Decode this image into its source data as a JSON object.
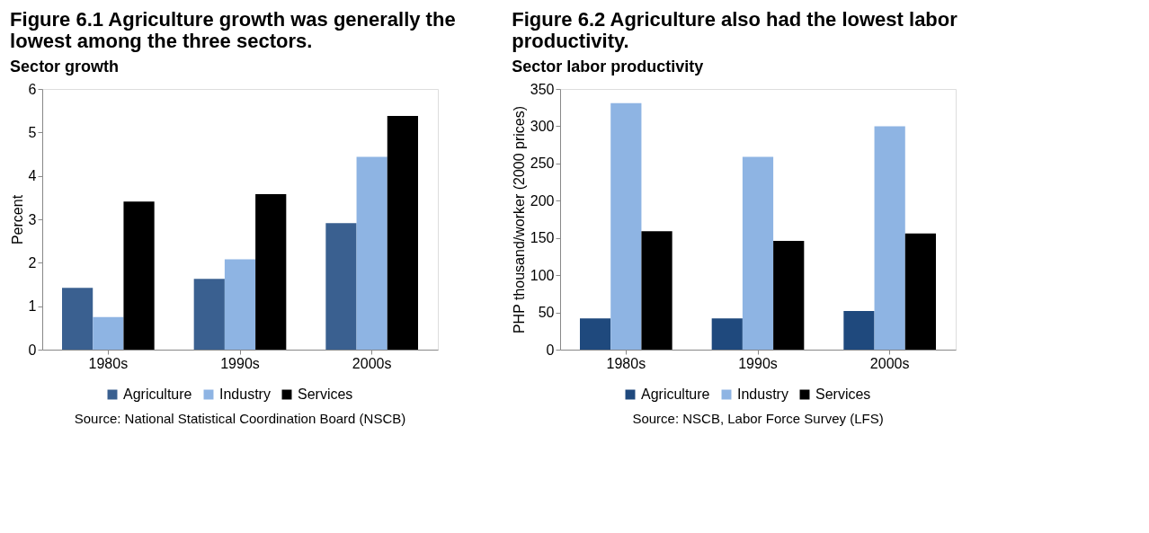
{
  "chart_data": [
    {
      "type": "bar",
      "title": "Figure 6.1 Agriculture growth was generally the lowest among the three sectors.",
      "subtitle": "Sector growth",
      "ylabel": "Percent",
      "categories": [
        "1980s",
        "1990s",
        "2000s"
      ],
      "series": [
        {
          "name": "Agriculture",
          "color": "#3a6090",
          "values": [
            1.42,
            1.63,
            2.91
          ]
        },
        {
          "name": "Industry",
          "color": "#8eb4e3",
          "values": [
            0.75,
            2.08,
            4.44
          ]
        },
        {
          "name": "Services",
          "color": "#000000",
          "values": [
            3.41,
            3.58,
            5.38
          ]
        }
      ],
      "ylim": [
        0,
        6
      ],
      "yticks": [
        0,
        1,
        2,
        3,
        4,
        5,
        6
      ],
      "grid": false,
      "legend": "bottom",
      "annotations": [
        "Source: National Statistical Coordination Board (NSCB)"
      ]
    },
    {
      "type": "bar",
      "title": "Figure 6.2 Agriculture also had the lowest labor productivity.",
      "subtitle": "Sector labor productivity",
      "ylabel": "PHP thousand/worker (2000 prices)",
      "categories": [
        "1980s",
        "1990s",
        "2000s"
      ],
      "series": [
        {
          "name": "Agriculture",
          "color": "#1f497d",
          "values": [
            42,
            42,
            52
          ]
        },
        {
          "name": "Industry",
          "color": "#8eb4e3",
          "values": [
            331,
            259,
            300
          ]
        },
        {
          "name": "Services",
          "color": "#000000",
          "values": [
            159,
            146,
            156
          ]
        }
      ],
      "ylim": [
        0,
        350
      ],
      "yticks": [
        0,
        50,
        100,
        150,
        200,
        250,
        300,
        350
      ],
      "grid": false,
      "legend": "bottom",
      "annotations": [
        "Source: NSCB, Labor Force Survey (LFS)"
      ]
    }
  ]
}
